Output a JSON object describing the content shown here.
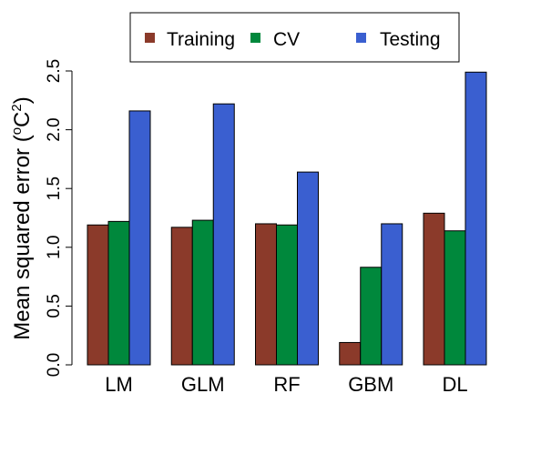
{
  "chart_data": {
    "type": "bar",
    "title": "",
    "xlabel": "",
    "ylabel": "Mean squared error (",
    "ylabel_unit_sup_o": "o",
    "ylabel_unit_base": "C",
    "ylabel_unit_sup_2": "2",
    "ylabel_close": ")",
    "categories": [
      "LM",
      "GLM",
      "RF",
      "GBM",
      "DL"
    ],
    "ylim": [
      0,
      2.5
    ],
    "yticks": [
      0.0,
      0.5,
      1.0,
      1.5,
      2.0,
      2.5
    ],
    "ytick_labels": [
      "0.0",
      "0.5",
      "1.0",
      "1.5",
      "2.0",
      "2.5"
    ],
    "grid": false,
    "legend_position": "top",
    "series": [
      {
        "name": "Training",
        "color": "#8B3A2A",
        "values": [
          1.19,
          1.17,
          1.2,
          0.19,
          1.29
        ]
      },
      {
        "name": "CV",
        "color": "#00883C",
        "values": [
          1.22,
          1.23,
          1.19,
          0.83,
          1.14
        ]
      },
      {
        "name": "Testing",
        "color": "#3A5FD0",
        "values": [
          2.16,
          2.22,
          1.64,
          1.2,
          2.49
        ]
      }
    ]
  }
}
